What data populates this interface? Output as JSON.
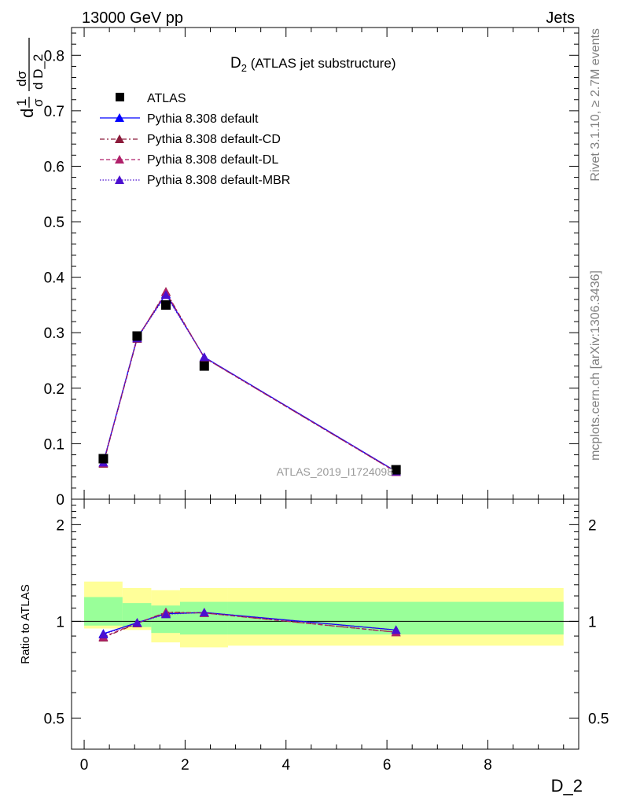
{
  "header": {
    "left": "13000 GeV pp",
    "right": "Jets"
  },
  "side_text": {
    "rivet": "Rivet 3.1.10, ≥ 2.7M events",
    "mcplots": "mcplots.cern.ch [arXiv:1306.3436]"
  },
  "watermark": "ATLAS_2019_I1724098",
  "chart_data": [
    {
      "type": "scatter",
      "title_main": "D",
      "title_sub": "2",
      "title_rest": " (ATLAS jet substructure)",
      "ylabel_parts": [
        "d",
        "1",
        "σ",
        "dσ",
        "d D_2"
      ],
      "xlim": [
        -0.25,
        9.8
      ],
      "ylim": [
        0,
        0.85
      ],
      "yticks": [
        0,
        0.1,
        0.2,
        0.3,
        0.4,
        0.5,
        0.6,
        0.7,
        0.8
      ],
      "ytick_labels": [
        "0",
        "0.1",
        "0.2",
        "0.3",
        "0.4",
        "0.5",
        "0.6",
        "0.7",
        "0.8"
      ],
      "legend": {
        "placement": "top-left",
        "entries": [
          "ATLAS",
          "Pythia 8.308 default",
          "Pythia 8.308 default-CD",
          "Pythia 8.308 default-DL",
          "Pythia 8.308 default-MBR"
        ]
      },
      "colors": {
        "data": "#000000",
        "default": "#0000ff",
        "cd": "#8b1a3a",
        "dl": "#b0206a",
        "mbr": "#4b0fcf"
      },
      "data": {
        "name": "ATLAS",
        "x": [
          0.38,
          1.05,
          1.62,
          2.38,
          6.18
        ],
        "y": [
          0.073,
          0.294,
          0.35,
          0.24,
          0.053
        ]
      },
      "series": [
        {
          "name": "Pythia 8.308 default",
          "style": "solid",
          "x": [
            0.38,
            1.05,
            1.62,
            2.38,
            6.18
          ],
          "y": [
            0.066,
            0.291,
            0.37,
            0.256,
            0.05
          ]
        },
        {
          "name": "Pythia 8.308 default-CD",
          "style": "dashdot",
          "x": [
            0.38,
            1.05,
            1.62,
            2.38,
            6.18
          ],
          "y": [
            0.064,
            0.289,
            0.374,
            0.255,
            0.049
          ]
        },
        {
          "name": "Pythia 8.308 default-DL",
          "style": "dashed",
          "x": [
            0.38,
            1.05,
            1.62,
            2.38,
            6.18
          ],
          "y": [
            0.065,
            0.29,
            0.373,
            0.255,
            0.049
          ]
        },
        {
          "name": "Pythia 8.308 default-MBR",
          "style": "dotted",
          "x": [
            0.38,
            1.05,
            1.62,
            2.38,
            6.18
          ],
          "y": [
            0.066,
            0.29,
            0.368,
            0.256,
            0.05
          ]
        }
      ]
    },
    {
      "type": "scatter",
      "ylabel": "Ratio to ATLAS",
      "xlabel": "D_2",
      "xlim": [
        -0.25,
        9.8
      ],
      "ylim": [
        0.4,
        2.4
      ],
      "yscale": "log",
      "yticks": [
        0.5,
        1,
        2
      ],
      "ytick_labels": [
        "0.5",
        "1",
        "2"
      ],
      "xticks": [
        0,
        2,
        4,
        6,
        8
      ],
      "xtick_labels": [
        "0",
        "2",
        "4",
        "6",
        "8"
      ],
      "bands": {
        "bins": [
          [
            0.0,
            0.76
          ],
          [
            0.76,
            1.33
          ],
          [
            1.33,
            1.9
          ],
          [
            1.9,
            2.85
          ],
          [
            2.85,
            9.5
          ]
        ],
        "yellow": [
          [
            0.95,
            1.33
          ],
          [
            0.94,
            1.27
          ],
          [
            0.86,
            1.25
          ],
          [
            0.83,
            1.27
          ],
          [
            0.84,
            1.27
          ]
        ],
        "green": [
          [
            0.97,
            1.19
          ],
          [
            0.96,
            1.14
          ],
          [
            0.92,
            1.12
          ],
          [
            0.91,
            1.15
          ],
          [
            0.91,
            1.15
          ]
        ],
        "yellow_color": "#ffff99",
        "green_color": "#99ff99"
      },
      "series": [
        {
          "name": "Pythia 8.308 default",
          "x": [
            0.38,
            1.05,
            1.62,
            2.38,
            6.18
          ],
          "y": [
            0.915,
            0.99,
            1.057,
            1.065,
            0.94
          ]
        },
        {
          "name": "Pythia 8.308 default-CD",
          "x": [
            0.38,
            1.05,
            1.62,
            2.38,
            6.18
          ],
          "y": [
            0.89,
            0.985,
            1.068,
            1.062,
            0.925
          ]
        },
        {
          "name": "Pythia 8.308 default-DL",
          "x": [
            0.38,
            1.05,
            1.62,
            2.38,
            6.18
          ],
          "y": [
            0.895,
            0.987,
            1.065,
            1.062,
            0.925
          ]
        },
        {
          "name": "Pythia 8.308 default-MBR",
          "x": [
            0.38,
            1.05,
            1.62,
            2.38,
            6.18
          ],
          "y": [
            0.91,
            0.99,
            1.052,
            1.066,
            0.94
          ]
        }
      ]
    }
  ]
}
